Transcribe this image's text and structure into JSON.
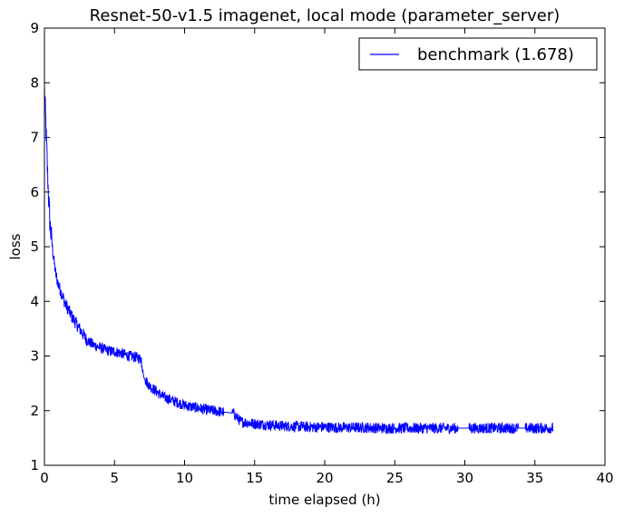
{
  "chart_data": {
    "type": "line",
    "title": "Resnet-50-v1.5 imagenet, local mode (parameter_server)",
    "xlabel": "time elapsed (h)",
    "ylabel": "loss",
    "xlim": [
      0,
      40
    ],
    "ylim": [
      1,
      9
    ],
    "xticks": [
      0,
      5,
      10,
      15,
      20,
      25,
      30,
      35,
      40
    ],
    "yticks": [
      1,
      2,
      3,
      4,
      5,
      6,
      7,
      8,
      9
    ],
    "grid": false,
    "legend_position": "top-right",
    "series": [
      {
        "name": "benchmark (1.678)",
        "color": "#0000ff",
        "x": [
          0,
          0.1,
          0.2,
          0.3,
          0.4,
          0.6,
          0.8,
          1.0,
          1.5,
          2.0,
          2.5,
          3.0,
          3.5,
          4.0,
          4.5,
          5.0,
          5.5,
          6.0,
          6.5,
          6.9,
          7.1,
          7.5,
          8.0,
          8.5,
          9.0,
          9.5,
          10.0,
          10.5,
          11.0,
          11.5,
          12.0,
          12.5,
          13.0,
          13.5,
          14.0,
          15.0,
          16.0,
          17.0,
          18.0,
          19.0,
          20.0,
          21.0,
          22.0,
          23.0,
          24.0,
          25.0,
          26.0,
          27.0,
          28.0,
          29.0,
          30.0,
          31.0,
          32.0,
          33.0,
          34.0,
          35.0,
          36.3
        ],
        "values": [
          7.9,
          7.2,
          6.5,
          5.9,
          5.4,
          4.9,
          4.5,
          4.3,
          3.95,
          3.7,
          3.5,
          3.3,
          3.2,
          3.15,
          3.1,
          3.08,
          3.05,
          3.0,
          2.98,
          2.95,
          2.6,
          2.45,
          2.35,
          2.25,
          2.2,
          2.15,
          2.1,
          2.07,
          2.05,
          2.02,
          2.0,
          1.98,
          1.97,
          1.95,
          1.8,
          1.76,
          1.74,
          1.72,
          1.71,
          1.7,
          1.7,
          1.69,
          1.69,
          1.69,
          1.68,
          1.68,
          1.68,
          1.68,
          1.68,
          1.68,
          1.68,
          1.68,
          1.68,
          1.68,
          1.68,
          1.68,
          1.68
        ]
      }
    ]
  }
}
